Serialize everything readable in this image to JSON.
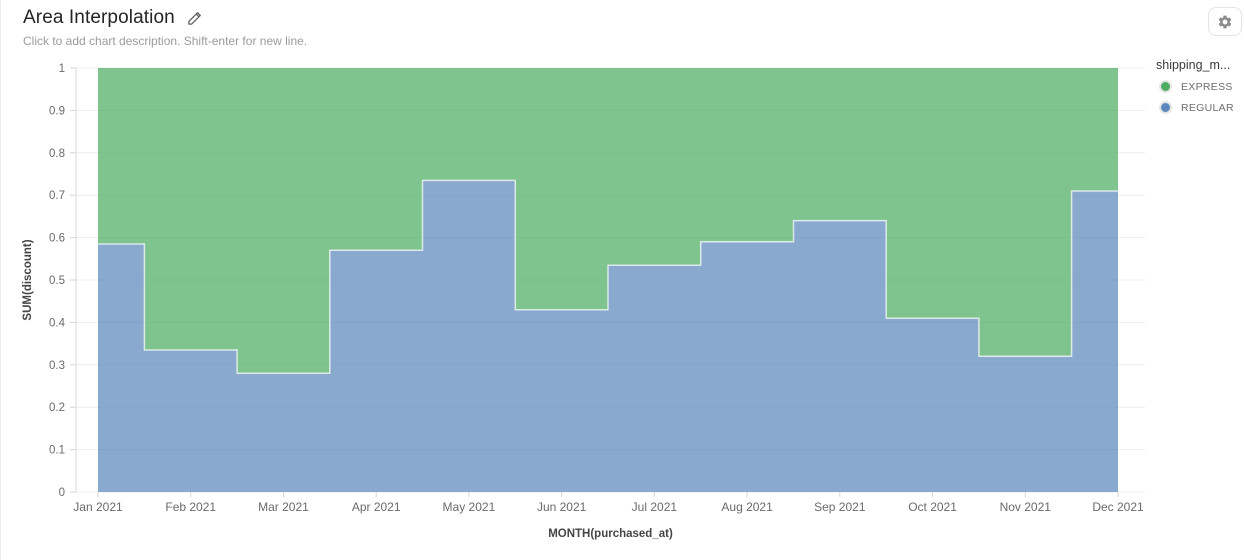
{
  "header": {
    "title": "Area Interpolation",
    "subtitle": "Click to add chart description. Shift-enter for new line.",
    "edit_icon": "pencil-icon"
  },
  "toolbar": {
    "settings_icon": "gear-icon"
  },
  "legend": {
    "title": "shipping_m...",
    "items": [
      {
        "label": "EXPRESS",
        "color": "#4DAC62"
      },
      {
        "label": "REGULAR",
        "color": "#5B88BD"
      }
    ]
  },
  "chart_data": {
    "type": "area",
    "interpolation": "step-middle",
    "stacked": true,
    "normalized": true,
    "title": "Area Interpolation",
    "xlabel": "MONTH(purchased_at)",
    "ylabel": "SUM(discount)",
    "ylim": [
      0,
      1
    ],
    "ytick_step": 0.1,
    "grid": "horizontal",
    "legend_position": "right",
    "x": [
      "Jan 2021",
      "Feb 2021",
      "Mar 2021",
      "Apr 2021",
      "May 2021",
      "Jun 2021",
      "Jul 2021",
      "Aug 2021",
      "Sep 2021",
      "Oct 2021",
      "Nov 2021",
      "Dec 2021"
    ],
    "series": [
      {
        "name": "REGULAR",
        "color": "#5B88BD",
        "values": [
          0.585,
          0.335,
          0.28,
          0.57,
          0.735,
          0.43,
          0.535,
          0.59,
          0.64,
          0.41,
          0.32,
          0.71
        ]
      },
      {
        "name": "EXPRESS",
        "color": "#4DAC62",
        "values": [
          0.415,
          0.665,
          0.72,
          0.43,
          0.265,
          0.57,
          0.465,
          0.41,
          0.36,
          0.59,
          0.68,
          0.29
        ]
      }
    ]
  }
}
